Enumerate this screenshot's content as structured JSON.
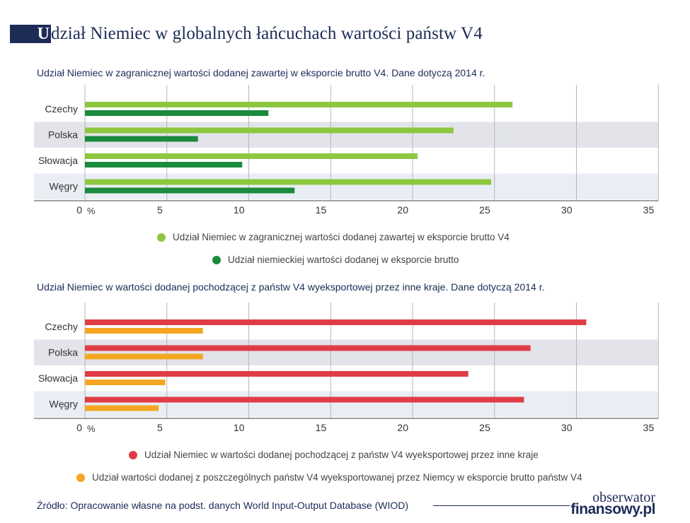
{
  "title": {
    "initial": "U",
    "rest": "dział Niemiec w globalnych łańcuchach wartości państw V4"
  },
  "chart_data": [
    {
      "type": "bar",
      "orientation": "horizontal",
      "title": "Udział Niemiec w zagranicznej wartości dodanej zawartej w eksporcie brutto V4. Dane dotyczą 2014 r.",
      "categories": [
        "Czechy",
        "Polska",
        "Słowacja",
        "Węgry"
      ],
      "series": [
        {
          "name": "Udział Niemiec w zagranicznej wartości dodanej zawartej w eksporcie brutto V4",
          "color": "#8dc63f",
          "values": [
            26.1,
            22.5,
            20.3,
            24.8
          ]
        },
        {
          "name": "Udział niemieckiej wartości dodanej w eksporcie brutto",
          "color": "#1a8a3d",
          "values": [
            11.2,
            6.9,
            9.6,
            12.8
          ]
        }
      ],
      "x_ticks": [
        "0",
        "5",
        "10",
        "15",
        "20",
        "25",
        "30",
        "35"
      ],
      "x_unit": "%",
      "xlim": [
        0,
        35
      ],
      "grid": true
    },
    {
      "type": "bar",
      "orientation": "horizontal",
      "title": "Udział Niemiec w wartości dodanej pochodzącej z państw V4 wyeksportowej przez inne kraje. Dane dotyczą 2014 r.",
      "categories": [
        "Czechy",
        "Polska",
        "Słowacja",
        "Węgry"
      ],
      "series": [
        {
          "name": "Udział Niemiec w wartości dodanej pochodzącej z państw V4 wyeksportowej przez inne kraje",
          "color": "#e03c45",
          "values": [
            30.6,
            27.2,
            23.4,
            26.8
          ]
        },
        {
          "name": "Udział wartości dodanej z poszczególnych państw V4 wyeksportowanej przez Niemcy w eksporcie brutto państw V4",
          "color": "#f5a623",
          "values": [
            7.2,
            7.2,
            4.9,
            4.5
          ]
        }
      ],
      "x_ticks": [
        "0",
        "5",
        "10",
        "15",
        "20",
        "25",
        "30",
        "35"
      ],
      "x_unit": "%",
      "xlim": [
        0,
        35
      ],
      "grid": true
    }
  ],
  "source": "Źródło: Opracowanie własne na podst. danych World Input-Output Database (WIOD)",
  "logo": {
    "line1": "obserwator",
    "line2": "finansowy.pl"
  }
}
